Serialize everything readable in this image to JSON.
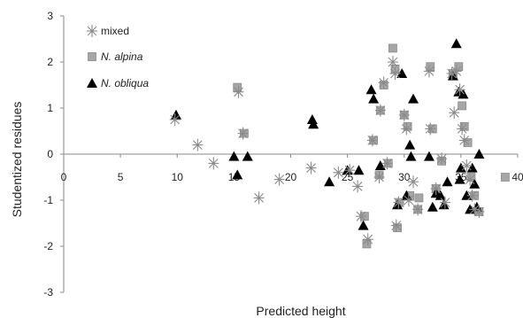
{
  "chart_data": {
    "type": "scatter",
    "title": "",
    "xlabel": "Predicted height",
    "ylabel": "Studentized residues",
    "xlim": [
      0,
      40
    ],
    "ylim": [
      -3,
      3
    ],
    "xticks": [
      "0",
      "5",
      "10",
      "15",
      "20",
      "25",
      "30",
      "35",
      "40"
    ],
    "yticks": [
      "3",
      "2",
      "1",
      "0",
      "-1",
      "-2",
      "-3"
    ],
    "grid": false,
    "legend_position": "top-left",
    "series": [
      {
        "name": "mixed",
        "marker": "asterisk",
        "color": "#8a8a8a",
        "points": [
          [
            9.8,
            0.75
          ],
          [
            11.8,
            0.2
          ],
          [
            13.2,
            -0.2
          ],
          [
            15.4,
            1.35
          ],
          [
            15.8,
            0.45
          ],
          [
            17.2,
            -0.95
          ],
          [
            19,
            -0.55
          ],
          [
            21.8,
            -0.3
          ],
          [
            24.2,
            -0.4
          ],
          [
            25.2,
            -0.35
          ],
          [
            25.9,
            -0.7
          ],
          [
            26.2,
            -1.35
          ],
          [
            26.8,
            -1.85
          ],
          [
            27.2,
            0.3
          ],
          [
            27.8,
            -0.5
          ],
          [
            27.9,
            0.95
          ],
          [
            28.2,
            1.55
          ],
          [
            28.5,
            -0.2
          ],
          [
            29,
            2.0
          ],
          [
            29.2,
            1.75
          ],
          [
            29.3,
            -1.55
          ],
          [
            29.5,
            -1.05
          ],
          [
            30.0,
            0.85
          ],
          [
            30.2,
            0.55
          ],
          [
            30.4,
            -1.0
          ],
          [
            31.2,
            -1.2
          ],
          [
            32.2,
            1.8
          ],
          [
            32.3,
            0.55
          ],
          [
            32.8,
            -0.75
          ],
          [
            33.3,
            -0.1
          ],
          [
            33.6,
            -1.05
          ],
          [
            34.2,
            1.75
          ],
          [
            34.4,
            0.9
          ],
          [
            34.6,
            1.8
          ],
          [
            34.9,
            1.4
          ],
          [
            35.1,
            0.55
          ],
          [
            35.3,
            0.3
          ],
          [
            35.5,
            -0.25
          ],
          [
            35.8,
            -0.55
          ],
          [
            36.0,
            -0.9
          ],
          [
            36.2,
            -1.2
          ],
          [
            36.6,
            -1.25
          ],
          [
            30.8,
            -0.6
          ]
        ]
      },
      {
        "name": "N. alpina",
        "marker": "square",
        "color": "#a6a6a6",
        "points": [
          [
            15.3,
            1.45
          ],
          [
            15.9,
            0.45
          ],
          [
            26.5,
            -1.35
          ],
          [
            26.7,
            -1.95
          ],
          [
            27.3,
            0.3
          ],
          [
            27.8,
            -0.45
          ],
          [
            27.9,
            0.95
          ],
          [
            28.2,
            1.5
          ],
          [
            28.6,
            -0.2
          ],
          [
            29.0,
            2.3
          ],
          [
            29.2,
            1.85
          ],
          [
            29.4,
            -1.6
          ],
          [
            29.6,
            -1.05
          ],
          [
            30.0,
            0.85
          ],
          [
            30.3,
            0.6
          ],
          [
            30.5,
            -0.9
          ],
          [
            31.2,
            -1.2
          ],
          [
            31.3,
            -0.95
          ],
          [
            32.3,
            1.9
          ],
          [
            32.5,
            0.55
          ],
          [
            32.8,
            -0.75
          ],
          [
            33.3,
            -0.15
          ],
          [
            34.3,
            1.75
          ],
          [
            34.8,
            1.9
          ],
          [
            35.1,
            1.05
          ],
          [
            35.3,
            0.6
          ],
          [
            35.6,
            0.25
          ],
          [
            35.9,
            -0.5
          ],
          [
            36.2,
            -0.9
          ],
          [
            36.6,
            -1.25
          ],
          [
            38.9,
            -0.5
          ]
        ]
      },
      {
        "name": "N. obliqua",
        "marker": "triangle",
        "color": "#000000",
        "points": [
          [
            9.9,
            0.85
          ],
          [
            15.0,
            -0.05
          ],
          [
            15.3,
            -0.45
          ],
          [
            16.2,
            -0.05
          ],
          [
            21.9,
            0.75
          ],
          [
            22.0,
            0.65
          ],
          [
            23.4,
            -0.6
          ],
          [
            25.0,
            -0.35
          ],
          [
            26.0,
            -0.35
          ],
          [
            26.4,
            -1.55
          ],
          [
            27.1,
            1.4
          ],
          [
            27.3,
            1.2
          ],
          [
            27.9,
            -0.25
          ],
          [
            29.4,
            -1.1
          ],
          [
            29.8,
            1.75
          ],
          [
            30.2,
            -0.9
          ],
          [
            30.5,
            0.2
          ],
          [
            30.6,
            -0.05
          ],
          [
            30.8,
            1.2
          ],
          [
            32.2,
            -0.05
          ],
          [
            32.8,
            -0.85
          ],
          [
            33.2,
            -0.9
          ],
          [
            33.5,
            -1.1
          ],
          [
            33.8,
            -0.6
          ],
          [
            34.3,
            1.7
          ],
          [
            34.6,
            2.4
          ],
          [
            34.8,
            1.35
          ],
          [
            34.9,
            -0.55
          ],
          [
            35.0,
            -0.3
          ],
          [
            35.2,
            1.3
          ],
          [
            35.5,
            -0.9
          ],
          [
            35.8,
            -1.2
          ],
          [
            36.0,
            -0.3
          ],
          [
            36.2,
            -0.65
          ],
          [
            36.4,
            -1.15
          ],
          [
            36.6,
            0.0
          ],
          [
            32.5,
            -1.15
          ]
        ]
      }
    ]
  }
}
